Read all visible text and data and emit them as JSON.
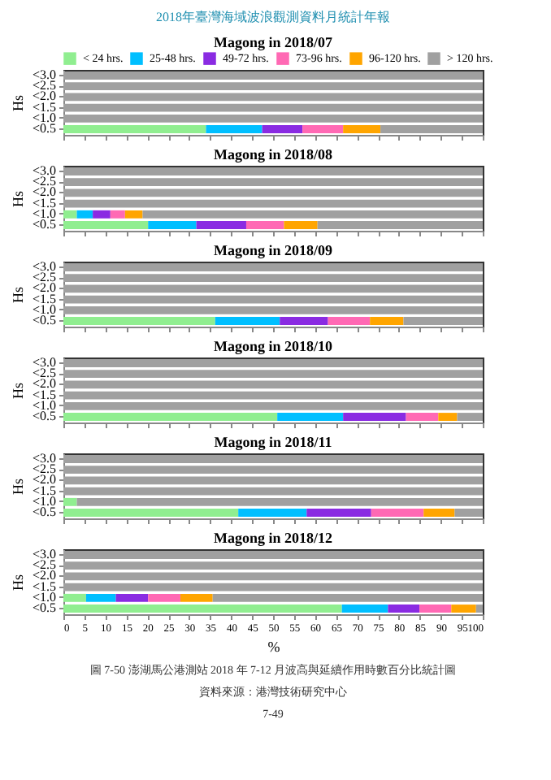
{
  "chart_data": [
    {
      "type": "bar",
      "orientation": "horizontal",
      "stacked": true,
      "title": "Magong in 2018/07",
      "ylabel": "Hs",
      "categories": [
        "<3.0",
        "<2.5",
        "<2.0",
        "<1.5",
        "<1.0",
        "<0.5"
      ],
      "xlim": [
        0,
        100
      ],
      "xticks": [
        0,
        5,
        10,
        15,
        20,
        25,
        30,
        35,
        40,
        45,
        50,
        55,
        60,
        65,
        70,
        75,
        80,
        85,
        90,
        95,
        100
      ],
      "tick_labels": "y",
      "legend": "top",
      "grid": false,
      "annotations": [
        "2018年臺灣海域波浪觀測資料月統計年報"
      ],
      "series": [
        {
          "name": "< 24 hrs.",
          "color": "#90ee90",
          "values": [
            0,
            0,
            0,
            0,
            0,
            34
          ]
        },
        {
          "name": "25-48 hrs.",
          "color": "#00bfff",
          "values": [
            0,
            0,
            0,
            0,
            0,
            13.4
          ]
        },
        {
          "name": "49-72 hrs.",
          "color": "#8a2be2",
          "values": [
            0,
            0,
            0,
            0,
            0,
            9.6
          ]
        },
        {
          "name": "73-96 hrs.",
          "color": "#ff69b4",
          "values": [
            0,
            0,
            0,
            0,
            0,
            9.7
          ]
        },
        {
          "name": "96-120 hrs.",
          "color": "#ffa500",
          "values": [
            0,
            0,
            0,
            0,
            0,
            8.9
          ]
        },
        {
          "name": "> 120 hrs.",
          "color": "#a0a0a0",
          "values": [
            100,
            100,
            100,
            100,
            100,
            24.4
          ]
        }
      ]
    },
    {
      "type": "bar",
      "orientation": "horizontal",
      "stacked": true,
      "title": "Magong in 2018/08",
      "ylabel": "Hs",
      "categories": [
        "<3.0",
        "<2.5",
        "<2.0",
        "<1.5",
        "<1.0",
        "<0.5"
      ],
      "xlim": [
        0,
        100
      ],
      "xticks": [
        0,
        5,
        10,
        15,
        20,
        25,
        30,
        35,
        40,
        45,
        50,
        55,
        60,
        65,
        70,
        75,
        80,
        85,
        90,
        95,
        100
      ],
      "tick_labels": "y",
      "grid": false,
      "series": [
        {
          "color": "#90ee90",
          "values": [
            0,
            0,
            0,
            0,
            3.2,
            20.2
          ]
        },
        {
          "color": "#00bfff",
          "values": [
            0,
            0,
            0,
            0,
            3.8,
            11.5
          ]
        },
        {
          "color": "#8a2be2",
          "values": [
            0,
            0,
            0,
            0,
            4.2,
            11.9
          ]
        },
        {
          "color": "#ff69b4",
          "values": [
            0,
            0,
            0,
            0,
            3.5,
            9
          ]
        },
        {
          "color": "#ffa500",
          "values": [
            0,
            0,
            0,
            0,
            4.2,
            8
          ]
        },
        {
          "color": "#a0a0a0",
          "values": [
            100,
            100,
            100,
            100,
            81.1,
            39.4
          ]
        }
      ]
    },
    {
      "type": "bar",
      "orientation": "horizontal",
      "stacked": true,
      "title": "Magong in 2018/09",
      "ylabel": "Hs",
      "categories": [
        "<3.0",
        "<2.5",
        "<2.0",
        "<1.5",
        "<1.0",
        "<0.5"
      ],
      "xlim": [
        0,
        100
      ],
      "xticks": [
        0,
        5,
        10,
        15,
        20,
        25,
        30,
        35,
        40,
        45,
        50,
        55,
        60,
        65,
        70,
        75,
        80,
        85,
        90,
        95,
        100
      ],
      "tick_labels": "y",
      "grid": false,
      "series": [
        {
          "color": "#90ee90",
          "values": [
            0,
            0,
            0,
            0,
            0,
            36.2
          ]
        },
        {
          "color": "#00bfff",
          "values": [
            0,
            0,
            0,
            0,
            0,
            15.4
          ]
        },
        {
          "color": "#8a2be2",
          "values": [
            0,
            0,
            0,
            0,
            0,
            11.5
          ]
        },
        {
          "color": "#ff69b4",
          "values": [
            0,
            0,
            0,
            0,
            0,
            10
          ]
        },
        {
          "color": "#ffa500",
          "values": [
            0,
            0,
            0,
            0,
            0,
            8
          ]
        },
        {
          "color": "#a0a0a0",
          "values": [
            100,
            100,
            100,
            100,
            100,
            18.9
          ]
        }
      ]
    },
    {
      "type": "bar",
      "orientation": "horizontal",
      "stacked": true,
      "title": "Magong in 2018/10",
      "ylabel": "Hs",
      "categories": [
        "<3.0",
        "<2.5",
        "<2.0",
        "<1.5",
        "<1.0",
        "<0.5"
      ],
      "xlim": [
        0,
        100
      ],
      "xticks": [
        0,
        5,
        10,
        15,
        20,
        25,
        30,
        35,
        40,
        45,
        50,
        55,
        60,
        65,
        70,
        75,
        80,
        85,
        90,
        95,
        100
      ],
      "tick_labels": "y",
      "grid": false,
      "series": [
        {
          "color": "#90ee90",
          "values": [
            0,
            0,
            0,
            0,
            0,
            51
          ]
        },
        {
          "color": "#00bfff",
          "values": [
            0,
            0,
            0,
            0,
            0,
            15.7
          ]
        },
        {
          "color": "#8a2be2",
          "values": [
            0,
            0,
            0,
            0,
            0,
            15
          ]
        },
        {
          "color": "#ff69b4",
          "values": [
            0,
            0,
            0,
            0,
            0,
            7.7
          ]
        },
        {
          "color": "#ffa500",
          "values": [
            0,
            0,
            0,
            0,
            0,
            4.5
          ]
        },
        {
          "color": "#a0a0a0",
          "values": [
            100,
            100,
            100,
            100,
            100,
            6.1
          ]
        }
      ]
    },
    {
      "type": "bar",
      "orientation": "horizontal",
      "stacked": true,
      "title": "Magong in 2018/11",
      "ylabel": "Hs",
      "categories": [
        "<3.0",
        "<2.5",
        "<2.0",
        "<1.5",
        "<1.0",
        "<0.5"
      ],
      "xlim": [
        0,
        100
      ],
      "xticks": [
        0,
        5,
        10,
        15,
        20,
        25,
        30,
        35,
        40,
        45,
        50,
        55,
        60,
        65,
        70,
        75,
        80,
        85,
        90,
        95,
        100
      ],
      "tick_labels": "y",
      "grid": false,
      "series": [
        {
          "color": "#90ee90",
          "values": [
            0,
            0,
            0,
            0,
            3.2,
            41.7
          ]
        },
        {
          "color": "#00bfff",
          "values": [
            0,
            0,
            0,
            0,
            0,
            16.3
          ]
        },
        {
          "color": "#8a2be2",
          "values": [
            0,
            0,
            0,
            0,
            0,
            15.4
          ]
        },
        {
          "color": "#ff69b4",
          "values": [
            0,
            0,
            0,
            0,
            0,
            12.5
          ]
        },
        {
          "color": "#ffa500",
          "values": [
            0,
            0,
            0,
            0,
            0,
            7.4
          ]
        },
        {
          "color": "#a0a0a0",
          "values": [
            100,
            100,
            100,
            100,
            96.8,
            6.7
          ]
        }
      ]
    },
    {
      "type": "bar",
      "orientation": "horizontal",
      "stacked": true,
      "title": "Magong in 2018/12",
      "ylabel": "Hs",
      "xlabel": "%",
      "categories": [
        "<3.0",
        "<2.5",
        "<2.0",
        "<1.5",
        "<1.0",
        "<0.5"
      ],
      "xlim": [
        0,
        100
      ],
      "xticks": [
        0,
        5,
        10,
        15,
        20,
        25,
        30,
        35,
        40,
        45,
        50,
        55,
        60,
        65,
        70,
        75,
        80,
        85,
        90,
        95,
        100
      ],
      "grid": false,
      "annotations": [
        "圖 7-50 澎湖馬公港測站 2018 年 7-12 月波高與延續作用時數百分比統計圖",
        "資料來源：港灣技術研究中心",
        "7-49"
      ],
      "series": [
        {
          "color": "#90ee90",
          "values": [
            0,
            0,
            0,
            0,
            5.4,
            66.4
          ]
        },
        {
          "color": "#00bfff",
          "values": [
            0,
            0,
            0,
            0,
            7.1,
            11
          ]
        },
        {
          "color": "#8a2be2",
          "values": [
            0,
            0,
            0,
            0,
            7.7,
            7.5
          ]
        },
        {
          "color": "#ff69b4",
          "values": [
            0,
            0,
            0,
            0,
            7.7,
            7.6
          ]
        },
        {
          "color": "#ffa500",
          "values": [
            0,
            0,
            0,
            0,
            7.7,
            5.9
          ]
        },
        {
          "color": "#a0a0a0",
          "values": [
            100,
            100,
            100,
            100,
            64.4,
            1.6
          ]
        }
      ]
    }
  ]
}
